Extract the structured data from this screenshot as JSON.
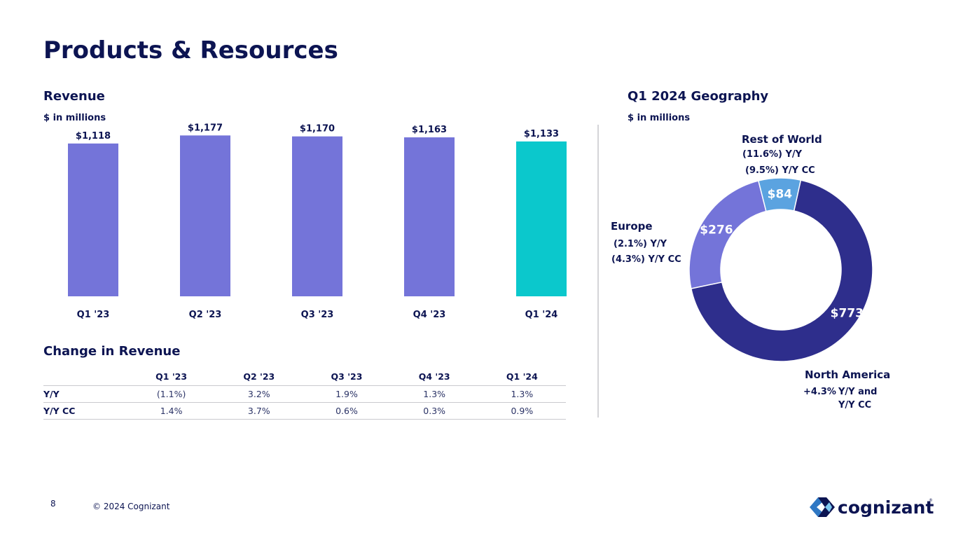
{
  "page": {
    "title": "Products & Resources",
    "page_number": "8",
    "copyright": "© 2024 Cognizant",
    "logo_text": "cognizant"
  },
  "revenue": {
    "heading": "Revenue",
    "unit": "$ in millions"
  },
  "change": {
    "heading": "Change in Revenue",
    "columns": [
      "Q1 '23",
      "Q2 '23",
      "Q3 '23",
      "Q4 '23",
      "Q1 '24"
    ],
    "rows": [
      {
        "label": "Y/Y",
        "values": [
          "(1.1%)",
          "3.2%",
          "1.9%",
          "1.3%",
          "1.3%"
        ]
      },
      {
        "label": "Y/Y CC",
        "values": [
          "1.4%",
          "3.7%",
          "0.6%",
          "0.3%",
          "0.9%"
        ]
      }
    ]
  },
  "geo": {
    "heading": "Q1 2024 Geography",
    "unit": "$ in millions",
    "rest_of_world": {
      "name": "Rest of World",
      "yy": "(11.6%) Y/Y",
      "yycc": "(9.5%) Y/Y CC"
    },
    "europe": {
      "name": "Europe",
      "yy": "(2.1%) Y/Y",
      "yycc": "(4.3%) Y/Y CC"
    },
    "north_america": {
      "name": "North America",
      "pct": "+4.3%",
      "yy": "Y/Y and",
      "yycc": "Y/Y CC"
    }
  },
  "colors": {
    "navy": "#0c1452",
    "bar": "#7474d9",
    "bar_highlight": "#0bc8cc",
    "na": "#2e2e8c",
    "europe": "#7474d9",
    "row": "#5ba3e0"
  },
  "chart_data": [
    {
      "type": "bar",
      "title": "Revenue",
      "ylabel": "$ in millions",
      "categories": [
        "Q1 '23",
        "Q2 '23",
        "Q3 '23",
        "Q4 '23",
        "Q1 '24"
      ],
      "values": [
        1118,
        1177,
        1170,
        1163,
        1133
      ],
      "value_labels": [
        "$1,118",
        "$1,177",
        "$1,170",
        "$1,163",
        "$1,133"
      ],
      "highlight_index": 4,
      "ylim": [
        0,
        1200
      ]
    },
    {
      "type": "pie",
      "title": "Q1 2024 Geography",
      "donut": true,
      "labels": [
        "North America",
        "Europe",
        "Rest of World"
      ],
      "values": [
        773,
        276,
        84
      ],
      "value_labels": [
        "$773",
        "$276",
        "$84"
      ]
    }
  ]
}
